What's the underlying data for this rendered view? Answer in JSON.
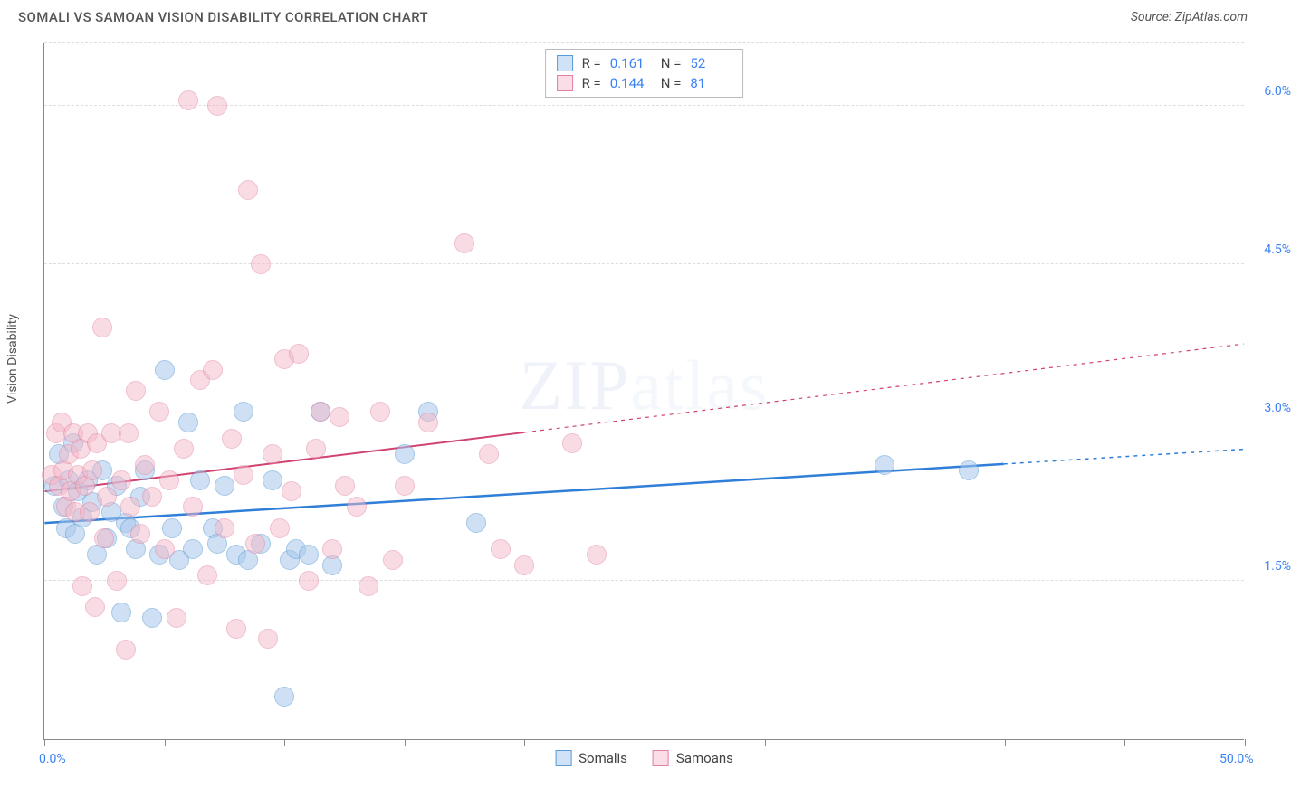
{
  "title": "SOMALI VS SAMOAN VISION DISABILITY CORRELATION CHART",
  "source": "Source: ZipAtlas.com",
  "watermark": "ZIPatlas",
  "y_axis_title": "Vision Disability",
  "xlim": [
    0,
    50
  ],
  "ylim": [
    0,
    6.6
  ],
  "x_ticks": [
    0,
    5,
    10,
    15,
    20,
    25,
    30,
    35,
    40,
    45,
    50
  ],
  "x_tick_labels": {
    "0": "0.0%",
    "50": "50.0%"
  },
  "y_grid": [
    1.5,
    3.0,
    4.5,
    6.0,
    6.6
  ],
  "y_tick_labels": {
    "1.5": "1.5%",
    "3.0": "3.0%",
    "4.5": "4.5%",
    "6.0": "6.0%"
  },
  "series": [
    {
      "name": "Somalis",
      "fill": "#a8c8ec",
      "stroke": "#5a9bd4",
      "swatch_fill": "#cfe2f7",
      "marker_r": 11,
      "opacity": 0.55,
      "R": "0.161",
      "N": "52",
      "trend": {
        "x1": 0,
        "y1": 2.05,
        "x2": 50,
        "y2": 2.75,
        "solid_until": 40,
        "color": "#2f7ed8",
        "width": 2.5
      },
      "points": [
        [
          0.4,
          2.4
        ],
        [
          0.6,
          2.7
        ],
        [
          0.8,
          2.2
        ],
        [
          0.9,
          2.0
        ],
        [
          1.0,
          2.45
        ],
        [
          1.2,
          2.8
        ],
        [
          1.3,
          1.95
        ],
        [
          1.4,
          2.35
        ],
        [
          1.6,
          2.1
        ],
        [
          1.8,
          2.45
        ],
        [
          2.0,
          2.25
        ],
        [
          2.2,
          1.75
        ],
        [
          2.4,
          2.55
        ],
        [
          2.6,
          1.9
        ],
        [
          2.8,
          2.15
        ],
        [
          3.0,
          2.4
        ],
        [
          3.2,
          1.2
        ],
        [
          3.4,
          2.05
        ],
        [
          3.6,
          2.0
        ],
        [
          3.8,
          1.8
        ],
        [
          4.0,
          2.3
        ],
        [
          4.2,
          2.55
        ],
        [
          4.5,
          1.15
        ],
        [
          4.8,
          1.75
        ],
        [
          5.0,
          3.5
        ],
        [
          5.3,
          2.0
        ],
        [
          5.6,
          1.7
        ],
        [
          6.0,
          3.0
        ],
        [
          6.2,
          1.8
        ],
        [
          6.5,
          2.45
        ],
        [
          7.0,
          2.0
        ],
        [
          7.2,
          1.85
        ],
        [
          7.5,
          2.4
        ],
        [
          8.0,
          1.75
        ],
        [
          8.3,
          3.1
        ],
        [
          8.5,
          1.7
        ],
        [
          9.0,
          1.85
        ],
        [
          9.5,
          2.45
        ],
        [
          10.0,
          0.4
        ],
        [
          10.2,
          1.7
        ],
        [
          10.5,
          1.8
        ],
        [
          11.0,
          1.75
        ],
        [
          11.5,
          3.1
        ],
        [
          12.0,
          1.65
        ],
        [
          15.0,
          2.7
        ],
        [
          16.0,
          3.1
        ],
        [
          18.0,
          2.05
        ],
        [
          35.0,
          2.6
        ],
        [
          38.5,
          2.55
        ]
      ]
    },
    {
      "name": "Samoans",
      "fill": "#f4b8c8",
      "stroke": "#e37fa0",
      "swatch_fill": "#fadde6",
      "marker_r": 11,
      "opacity": 0.5,
      "R": "0.144",
      "N": "81",
      "trend": {
        "x1": 0,
        "y1": 2.35,
        "x2": 50,
        "y2": 3.75,
        "solid_until": 20,
        "color": "#d1436f",
        "width": 2
      },
      "points": [
        [
          0.3,
          2.5
        ],
        [
          0.5,
          2.9
        ],
        [
          0.6,
          2.4
        ],
        [
          0.7,
          3.0
        ],
        [
          0.8,
          2.55
        ],
        [
          0.9,
          2.2
        ],
        [
          1.0,
          2.7
        ],
        [
          1.1,
          2.35
        ],
        [
          1.2,
          2.9
        ],
        [
          1.3,
          2.15
        ],
        [
          1.4,
          2.5
        ],
        [
          1.5,
          2.75
        ],
        [
          1.6,
          1.45
        ],
        [
          1.7,
          2.4
        ],
        [
          1.8,
          2.9
        ],
        [
          1.9,
          2.15
        ],
        [
          2.0,
          2.55
        ],
        [
          2.1,
          1.25
        ],
        [
          2.2,
          2.8
        ],
        [
          2.4,
          3.9
        ],
        [
          2.5,
          1.9
        ],
        [
          2.6,
          2.3
        ],
        [
          2.8,
          2.9
        ],
        [
          3.0,
          1.5
        ],
        [
          3.2,
          2.45
        ],
        [
          3.4,
          0.85
        ],
        [
          3.5,
          2.9
        ],
        [
          3.6,
          2.2
        ],
        [
          3.8,
          3.3
        ],
        [
          4.0,
          1.95
        ],
        [
          4.2,
          2.6
        ],
        [
          4.5,
          2.3
        ],
        [
          4.8,
          3.1
        ],
        [
          5.0,
          1.8
        ],
        [
          5.2,
          2.45
        ],
        [
          5.5,
          1.15
        ],
        [
          5.8,
          2.75
        ],
        [
          6.0,
          6.05
        ],
        [
          6.2,
          2.2
        ],
        [
          6.5,
          3.4
        ],
        [
          6.8,
          1.55
        ],
        [
          7.0,
          3.5
        ],
        [
          7.2,
          6.0
        ],
        [
          7.5,
          2.0
        ],
        [
          7.8,
          2.85
        ],
        [
          8.0,
          1.05
        ],
        [
          8.3,
          2.5
        ],
        [
          8.5,
          5.2
        ],
        [
          8.8,
          1.85
        ],
        [
          9.0,
          4.5
        ],
        [
          9.3,
          0.95
        ],
        [
          9.5,
          2.7
        ],
        [
          9.8,
          2.0
        ],
        [
          10.0,
          3.6
        ],
        [
          10.3,
          2.35
        ],
        [
          10.6,
          3.65
        ],
        [
          11.0,
          1.5
        ],
        [
          11.3,
          2.75
        ],
        [
          11.5,
          3.1
        ],
        [
          12.0,
          1.8
        ],
        [
          12.3,
          3.05
        ],
        [
          12.5,
          2.4
        ],
        [
          13.0,
          2.2
        ],
        [
          13.5,
          1.45
        ],
        [
          14.0,
          3.1
        ],
        [
          14.5,
          1.7
        ],
        [
          15.0,
          2.4
        ],
        [
          16.0,
          3.0
        ],
        [
          17.5,
          4.7
        ],
        [
          18.5,
          2.7
        ],
        [
          19.0,
          1.8
        ],
        [
          20.0,
          1.65
        ],
        [
          22.0,
          2.8
        ],
        [
          23.0,
          1.75
        ]
      ]
    }
  ],
  "legend_bottom": [
    {
      "label": "Somalis",
      "fill": "#cfe2f7",
      "stroke": "#5a9bd4"
    },
    {
      "label": "Samoans",
      "fill": "#fadde6",
      "stroke": "#e37fa0"
    }
  ],
  "colors": {
    "axis": "#888",
    "grid": "#dddddd",
    "tick_label": "#3b82f6",
    "title": "#555555"
  }
}
